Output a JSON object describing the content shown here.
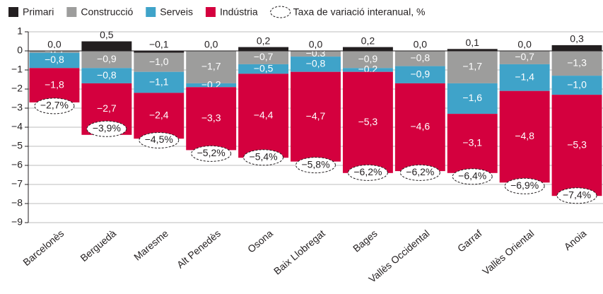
{
  "chart_data": {
    "type": "bar",
    "stacked": true,
    "categories": [
      "Barcelonès",
      "Berguedà",
      "Maresme",
      "Alt Penedès",
      "Osona",
      "Baix Llobregat",
      "Bages",
      "Vallès Occidental",
      "Garraf",
      "Vallès Oriental",
      "Anoia"
    ],
    "series": [
      {
        "name": "Primari",
        "color": "#231f20",
        "values": [
          0.0,
          0.5,
          -0.1,
          0.0,
          0.2,
          0.0,
          0.2,
          0.0,
          0.1,
          0.0,
          0.3
        ],
        "value_labels": [
          "0,0",
          "0,5",
          "−0,1",
          "0,0",
          "0,2",
          "0,0",
          "0,2",
          "0,0",
          "0,1",
          "0,0",
          "0,3"
        ]
      },
      {
        "name": "Construcció",
        "color": "#9d9d9c",
        "values": [
          -0.1,
          -0.9,
          -1.0,
          -1.7,
          -0.7,
          -0.3,
          -0.9,
          -0.8,
          -1.7,
          -0.7,
          -1.3
        ],
        "value_labels": [
          "−0,1",
          "−0,9",
          "−1,0",
          "−1,7",
          "−0,7",
          "−0,3",
          "−0,9",
          "−0,8",
          "−1,7",
          "−0,7",
          "−1,3"
        ]
      },
      {
        "name": "Serveis",
        "color": "#3fa3c9",
        "values": [
          -0.8,
          -0.8,
          -1.1,
          -0.2,
          -0.5,
          -0.8,
          -0.2,
          -0.9,
          -1.6,
          -1.4,
          -1.0
        ],
        "value_labels": [
          "−0,8",
          "−0,8",
          "−1,1",
          "−0,2",
          "−0,5",
          "−0,8",
          "−0,2",
          "−0,9",
          "−1,6",
          "−1,4",
          "−1,0"
        ]
      },
      {
        "name": "Indústria",
        "color": "#d4003e",
        "values": [
          -1.8,
          -2.7,
          -2.4,
          -3.3,
          -4.4,
          -4.7,
          -5.3,
          -4.6,
          -3.1,
          -4.8,
          -5.3
        ],
        "value_labels": [
          "−1,8",
          "−2,7",
          "−2,4",
          "−3,3",
          "−4,4",
          "−4,7",
          "−5,3",
          "−4,6",
          "−3,1",
          "−4,8",
          "−5,3"
        ]
      }
    ],
    "rate": {
      "name": "Taxa de variació interanual, %",
      "values": [
        -2.7,
        -3.9,
        -4.5,
        -5.2,
        -5.4,
        -5.8,
        -6.2,
        -6.2,
        -6.4,
        -6.9,
        -7.4
      ],
      "value_labels": [
        "−2,7%",
        "−3,9%",
        "−4,5%",
        "−5,2%",
        "−5,4%",
        "−5,8%",
        "−6,2%",
        "−6,2%",
        "−6,4%",
        "−6,9%",
        "−7,4%"
      ]
    },
    "ylim": [
      1,
      -9
    ],
    "yticks": [
      1,
      0,
      {
        "value": -1,
        "label": "−1"
      },
      {
        "value": -2,
        "label": "−2"
      },
      {
        "value": -3,
        "label": "−3"
      },
      {
        "value": -4,
        "label": "−4"
      },
      {
        "value": -5,
        "label": "−5"
      },
      {
        "value": -6,
        "label": "−6"
      },
      {
        "value": -7,
        "label": "−7"
      },
      {
        "value": -8,
        "label": "−8"
      },
      {
        "value": -9,
        "label": "−9"
      }
    ],
    "grid": true
  }
}
